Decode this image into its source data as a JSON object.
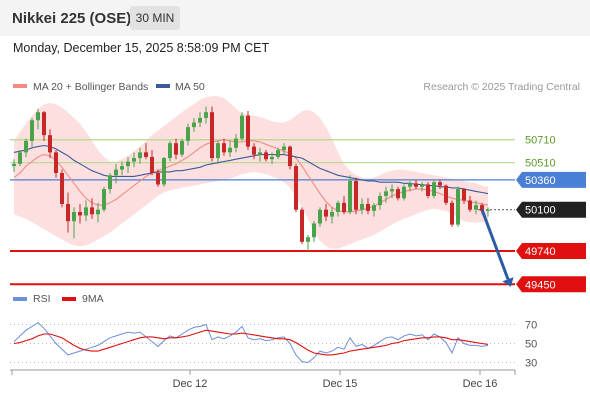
{
  "header": {
    "title": "Nikkei 225 (OSE)",
    "timeframe": "30 MIN"
  },
  "datetime": "Monday, December 15, 2025 8:58:09 PM CET",
  "legend": {
    "ma20": "MA 20 + Bollinger Bands",
    "ma50": "MA 50",
    "copyright": "Research © 2025 Trading Central"
  },
  "rsi_legend": {
    "rsi": "RSI",
    "nine_ma": "9MA"
  },
  "colors": {
    "bull": "#4aa24a",
    "bear": "#c62828",
    "ma20": "#f28b82",
    "ma50": "#3a5a9c",
    "band": "#fdd9d9",
    "support": "#e01010",
    "resistance_light": "#b6d98a",
    "pivot": "#4a7fd6",
    "forecast": "#2c5ba8",
    "rsi": "#6b8fd9",
    "rsi_ma": "#e01010"
  },
  "chart_data": [
    {
      "type": "candlestick",
      "title": "Nikkei 225 (OSE)",
      "timeframe": "30 MIN",
      "x_labels": [
        "Dec 12",
        "Dec 15",
        "Dec 16"
      ],
      "ylim": [
        49400,
        51100
      ],
      "levels": [
        {
          "label": "50710",
          "value": 50710,
          "kind": "resistance"
        },
        {
          "label": "50510",
          "value": 50510,
          "kind": "resistance"
        },
        {
          "label": "50360",
          "value": 50360,
          "kind": "pivot"
        },
        {
          "label": "50100",
          "value": 50100,
          "kind": "last"
        },
        {
          "label": "49740",
          "value": 49740,
          "kind": "support"
        },
        {
          "label": "49450",
          "value": 49450,
          "kind": "support"
        }
      ],
      "forecast": {
        "from": 50100,
        "to": 49450
      },
      "candles": [
        [
          50480,
          50540,
          50430,
          50500
        ],
        [
          50500,
          50620,
          50480,
          50600
        ],
        [
          50600,
          50720,
          50560,
          50700
        ],
        [
          50700,
          50900,
          50650,
          50880
        ],
        [
          50880,
          50980,
          50800,
          50950
        ],
        [
          50950,
          50960,
          50700,
          50750
        ],
        [
          50750,
          50800,
          50550,
          50600
        ],
        [
          50600,
          50620,
          50380,
          50420
        ],
        [
          50420,
          50450,
          50120,
          50150
        ],
        [
          50150,
          50250,
          49900,
          50000
        ],
        [
          50000,
          50120,
          49850,
          50080
        ],
        [
          50080,
          50150,
          49980,
          50050
        ],
        [
          50050,
          50180,
          50000,
          50120
        ],
        [
          50120,
          50200,
          50020,
          50060
        ],
        [
          50060,
          50160,
          49990,
          50100
        ],
        [
          50100,
          50300,
          50080,
          50280
        ],
        [
          50280,
          50420,
          50240,
          50400
        ],
        [
          50400,
          50500,
          50330,
          50450
        ],
        [
          50450,
          50520,
          50400,
          50480
        ],
        [
          50480,
          50560,
          50420,
          50520
        ],
        [
          50520,
          50600,
          50470,
          50550
        ],
        [
          50550,
          50640,
          50500,
          50600
        ],
        [
          50600,
          50680,
          50540,
          50560
        ],
        [
          50560,
          50620,
          50400,
          50420
        ],
        [
          50420,
          50450,
          50300,
          50320
        ],
        [
          50320,
          50560,
          50300,
          50550
        ],
        [
          50550,
          50700,
          50520,
          50680
        ],
        [
          50680,
          50720,
          50540,
          50580
        ],
        [
          50580,
          50720,
          50560,
          50700
        ],
        [
          50700,
          50850,
          50660,
          50820
        ],
        [
          50820,
          50900,
          50780,
          50860
        ],
        [
          50860,
          50950,
          50820,
          50900
        ],
        [
          50900,
          51000,
          50850,
          50950
        ],
        [
          50950,
          51000,
          50520,
          50550
        ],
        [
          50550,
          50700,
          50500,
          50680
        ],
        [
          50680,
          50720,
          50570,
          50600
        ],
        [
          50600,
          50700,
          50560,
          50640
        ],
        [
          50640,
          50760,
          50600,
          50720
        ],
        [
          50720,
          50950,
          50700,
          50920
        ],
        [
          50920,
          50960,
          50620,
          50650
        ],
        [
          50650,
          50680,
          50540,
          50580
        ],
        [
          50580,
          50640,
          50520,
          50600
        ],
        [
          50600,
          50620,
          50520,
          50540
        ],
        [
          50540,
          50600,
          50500,
          50560
        ],
        [
          50560,
          50640,
          50540,
          50620
        ],
        [
          50620,
          50680,
          50580,
          50650
        ],
        [
          50650,
          50660,
          50450,
          50480
        ],
        [
          50480,
          50500,
          50080,
          50100
        ],
        [
          50100,
          50120,
          49800,
          49820
        ],
        [
          49820,
          49880,
          49740,
          49860
        ],
        [
          49860,
          50000,
          49820,
          49980
        ],
        [
          49980,
          50120,
          49950,
          50100
        ],
        [
          50100,
          50150,
          50000,
          50040
        ],
        [
          50040,
          50120,
          49980,
          50080
        ],
        [
          50080,
          50180,
          50040,
          50160
        ],
        [
          50160,
          50220,
          50060,
          50080
        ],
        [
          50080,
          50400,
          50060,
          50350
        ],
        [
          50350,
          50380,
          50060,
          50100
        ],
        [
          50100,
          50200,
          50060,
          50150
        ],
        [
          50150,
          50200,
          50060,
          50090
        ],
        [
          50090,
          50160,
          50040,
          50140
        ],
        [
          50140,
          50250,
          50100,
          50220
        ],
        [
          50220,
          50300,
          50160,
          50260
        ],
        [
          50260,
          50320,
          50200,
          50280
        ],
        [
          50280,
          50300,
          50180,
          50200
        ],
        [
          50200,
          50320,
          50180,
          50300
        ],
        [
          50300,
          50350,
          50260,
          50330
        ],
        [
          50330,
          50360,
          50280,
          50300
        ],
        [
          50300,
          50340,
          50260,
          50320
        ],
        [
          50320,
          50340,
          50200,
          50220
        ],
        [
          50220,
          50360,
          50200,
          50340
        ],
        [
          50340,
          50360,
          50280,
          50310
        ],
        [
          50310,
          50320,
          50140,
          50160
        ],
        [
          50160,
          50180,
          49950,
          49970
        ],
        [
          49970,
          50300,
          49950,
          50280
        ],
        [
          50280,
          50290,
          50150,
          50180
        ],
        [
          50180,
          50220,
          50080,
          50100
        ],
        [
          50100,
          50180,
          50060,
          50140
        ],
        [
          50140,
          50160,
          50060,
          50090
        ],
        [
          50090,
          50120,
          50040,
          50100
        ]
      ],
      "ma20": [
        50380,
        50420,
        50480,
        50520,
        50560,
        50580,
        50570,
        50530,
        50470,
        50400,
        50330,
        50260,
        50200,
        50160,
        50140,
        50140,
        50160,
        50190,
        50230,
        50270,
        50310,
        50350,
        50390,
        50420,
        50440,
        50460,
        50480,
        50500,
        50530,
        50560,
        50600,
        50640,
        50670,
        50690,
        50700,
        50710,
        50700,
        50690,
        50690,
        50700,
        50700,
        50690,
        50670,
        50650,
        50630,
        50610,
        50590,
        50550,
        50480,
        50400,
        50320,
        50240,
        50170,
        50120,
        50090,
        50080,
        50080,
        50090,
        50100,
        50110,
        50130,
        50160,
        50190,
        50220,
        50240,
        50260,
        50270,
        50280,
        50280,
        50270,
        50260,
        50240,
        50220,
        50200,
        50190,
        50180,
        50170,
        50160,
        50150,
        50140
      ],
      "band_upper": [
        50700,
        50780,
        50850,
        50920,
        50980,
        51020,
        51030,
        51020,
        50990,
        50950,
        50900,
        50850,
        50780,
        50700,
        50620,
        50560,
        50520,
        50520,
        50540,
        50570,
        50610,
        50650,
        50700,
        50750,
        50790,
        50830,
        50870,
        50910,
        50950,
        50990,
        51020,
        51060,
        51080,
        51090,
        51090,
        51070,
        51030,
        50980,
        50940,
        50930,
        50920,
        50910,
        50890,
        50870,
        50860,
        50860,
        50880,
        50920,
        50960,
        50970,
        50950,
        50900,
        50820,
        50720,
        50600,
        50500,
        50440,
        50400,
        50380,
        50370,
        50380,
        50400,
        50430,
        50440,
        50450,
        50450,
        50440,
        50430,
        50420,
        50410,
        50400,
        50390,
        50380,
        50370,
        50360,
        50350,
        50340,
        50330,
        50310,
        50300
      ],
      "band_lower": [
        50060,
        50040,
        50020,
        49990,
        49960,
        49930,
        49900,
        49870,
        49840,
        49810,
        49790,
        49780,
        49790,
        49810,
        49840,
        49870,
        49900,
        49940,
        49980,
        50020,
        50060,
        50100,
        50140,
        50180,
        50220,
        50250,
        50270,
        50280,
        50290,
        50300,
        50310,
        50320,
        50330,
        50340,
        50350,
        50360,
        50370,
        50390,
        50410,
        50420,
        50430,
        50420,
        50410,
        50390,
        50370,
        50340,
        50290,
        50210,
        50120,
        50020,
        49910,
        49830,
        49780,
        49760,
        49760,
        49780,
        49800,
        49820,
        49840,
        49860,
        49880,
        49910,
        49940,
        49970,
        50000,
        50020,
        50040,
        50060,
        50080,
        50100,
        50110,
        50100,
        50090,
        50060,
        50030,
        50000,
        49990,
        49990,
        49990,
        50000
      ],
      "ma50": [
        50600,
        50610,
        50620,
        50640,
        50650,
        50660,
        50650,
        50630,
        50600,
        50570,
        50530,
        50500,
        50470,
        50440,
        50420,
        50400,
        50390,
        50390,
        50390,
        50390,
        50390,
        50400,
        50410,
        50420,
        50430,
        50430,
        50430,
        50440,
        50440,
        50450,
        50460,
        50470,
        50490,
        50500,
        50510,
        50520,
        50530,
        50540,
        50550,
        50560,
        50570,
        50580,
        50580,
        50580,
        50580,
        50580,
        50570,
        50560,
        50550,
        50520,
        50490,
        50460,
        50440,
        50420,
        50400,
        50390,
        50380,
        50370,
        50360,
        50350,
        50350,
        50340,
        50340,
        50340,
        50340,
        50330,
        50330,
        50320,
        50320,
        50310,
        50310,
        50300,
        50300,
        50290,
        50290,
        50280,
        50270,
        50260,
        50250,
        50240
      ]
    },
    {
      "type": "line",
      "title": "RSI",
      "series": [
        {
          "name": "RSI",
          "values": [
            52,
            58,
            64,
            68,
            72,
            66,
            58,
            50,
            44,
            38,
            40,
            42,
            44,
            46,
            48,
            52,
            56,
            58,
            60,
            62,
            61,
            62,
            57,
            52,
            47,
            53,
            58,
            56,
            60,
            64,
            67,
            68,
            70,
            54,
            57,
            55,
            58,
            62,
            68,
            56,
            54,
            55,
            53,
            54,
            56,
            57,
            50,
            38,
            31,
            30,
            35,
            42,
            40,
            42,
            46,
            44,
            56,
            47,
            49,
            45,
            48,
            52,
            56,
            57,
            54,
            58,
            60,
            58,
            59,
            54,
            60,
            57,
            51,
            40,
            56,
            50,
            48,
            48,
            47,
            48
          ]
        },
        {
          "name": "9MA",
          "values": [
            50,
            51,
            53,
            55,
            58,
            60,
            60,
            58,
            56,
            52,
            48,
            45,
            43,
            42,
            42,
            44,
            46,
            48,
            50,
            52,
            54,
            56,
            57,
            57,
            56,
            55,
            56,
            56,
            57,
            58,
            60,
            62,
            64,
            63,
            62,
            61,
            60,
            60,
            61,
            60,
            59,
            58,
            57,
            56,
            55,
            55,
            54,
            51,
            47,
            43,
            40,
            39,
            38,
            38,
            39,
            40,
            42,
            43,
            44,
            45,
            46,
            47,
            48,
            50,
            51,
            53,
            54,
            55,
            56,
            56,
            57,
            57,
            56,
            54,
            54,
            53,
            52,
            51,
            50,
            49
          ]
        }
      ],
      "yticks": [
        30,
        50,
        70
      ],
      "ylim": [
        20,
        80
      ]
    }
  ]
}
